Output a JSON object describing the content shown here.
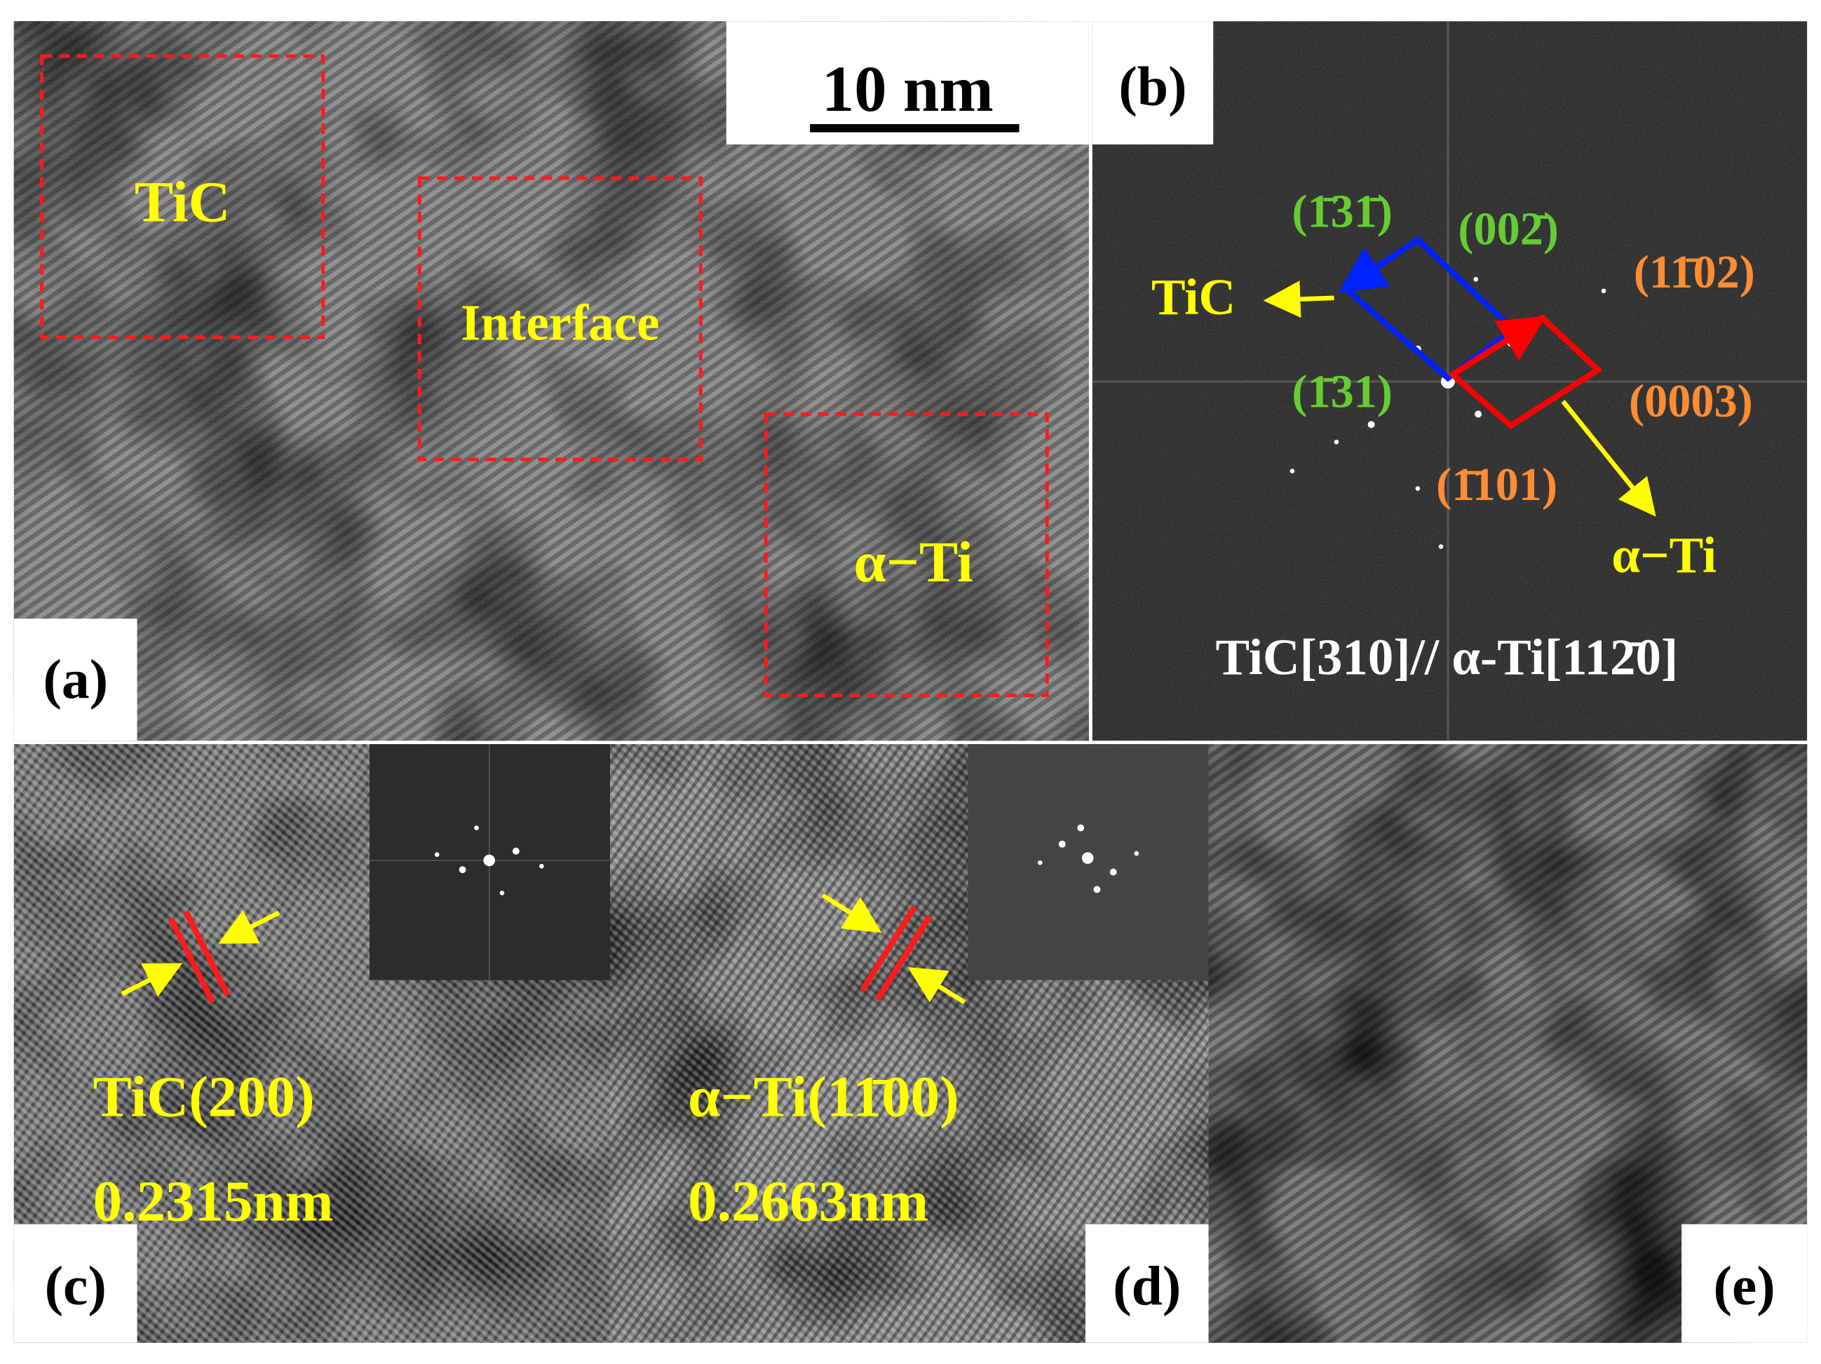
{
  "panels": {
    "a": {
      "label": "(a)",
      "scale_bar": "10 nm",
      "regions": [
        "TiC",
        "Interface",
        "α−Ti"
      ]
    },
    "b": {
      "label": "(b)",
      "spots": [
        "(1̄31̄)",
        "(002̄)",
        "(11̄02)",
        "(1̄31)",
        "(0003)",
        "(1̄101)"
      ],
      "phases": [
        "TiC",
        "α−Ti"
      ],
      "orientation": "TiC[310]// α-Ti[112̄0]"
    },
    "c": {
      "label": "(c)",
      "plane": "TiC(200)",
      "spacing": "0.2315nm"
    },
    "d": {
      "label": "(d)",
      "plane": "α−Ti(11̄00)",
      "spacing": "0.2663nm"
    },
    "e": {
      "label": "(e)"
    }
  }
}
